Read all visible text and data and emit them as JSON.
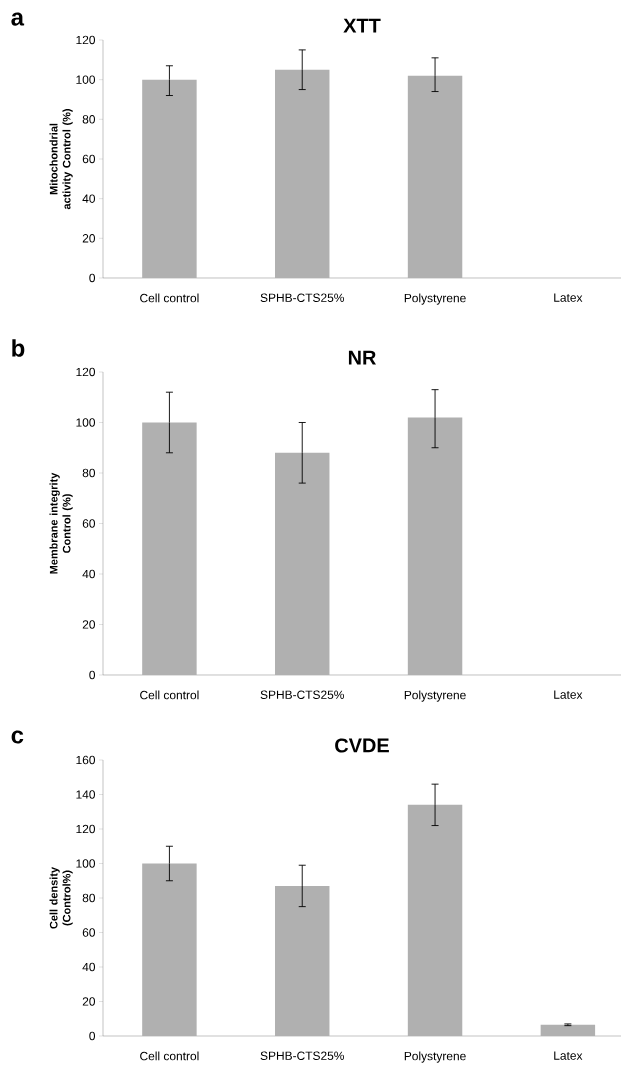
{
  "chart_data": [
    {
      "type": "bar",
      "title": "XTT",
      "ylabel": "Mitochondrial activity Control (%)",
      "categories": [
        "Cell control",
        "SPHB-CTS25%",
        "Polystyrene",
        "Latex"
      ],
      "values": [
        100,
        105,
        102,
        null
      ],
      "errors": [
        [
          92,
          107
        ],
        [
          95,
          115
        ],
        [
          94,
          111
        ],
        null
      ],
      "color": "#b0b0b0",
      "ylim": [
        0,
        120
      ],
      "yticks": [
        0,
        20,
        40,
        60,
        80,
        100,
        120
      ],
      "annotations": [
        "a"
      ]
    },
    {
      "type": "bar",
      "title": "NR",
      "ylabel": "Membrane integrity Control (%)",
      "categories": [
        "Cell control",
        "SPHB-CTS25%",
        "Polystyrene",
        "Latex"
      ],
      "values": [
        100,
        88,
        102,
        null
      ],
      "errors": [
        [
          88,
          112
        ],
        [
          76,
          100
        ],
        [
          90,
          113
        ],
        null
      ],
      "color": "#b0b0b0",
      "ylim": [
        0,
        120
      ],
      "yticks": [
        0,
        20,
        40,
        60,
        80,
        100,
        120
      ],
      "annotations": [
        "b"
      ]
    },
    {
      "type": "bar",
      "title": "CVDE",
      "ylabel": "Cell density (Control%)",
      "categories": [
        "Cell control",
        "SPHB-CTS25%",
        "Polystyrene",
        "Latex"
      ],
      "values": [
        100,
        87,
        134,
        6.5
      ],
      "errors": [
        [
          90,
          110
        ],
        [
          75,
          99
        ],
        [
          122,
          146
        ],
        [
          6,
          7
        ]
      ],
      "color": "#b0b0b0",
      "ylim": [
        0,
        160
      ],
      "yticks": [
        0,
        20,
        40,
        60,
        80,
        100,
        120,
        140,
        160
      ],
      "annotations": [
        "c"
      ]
    }
  ]
}
